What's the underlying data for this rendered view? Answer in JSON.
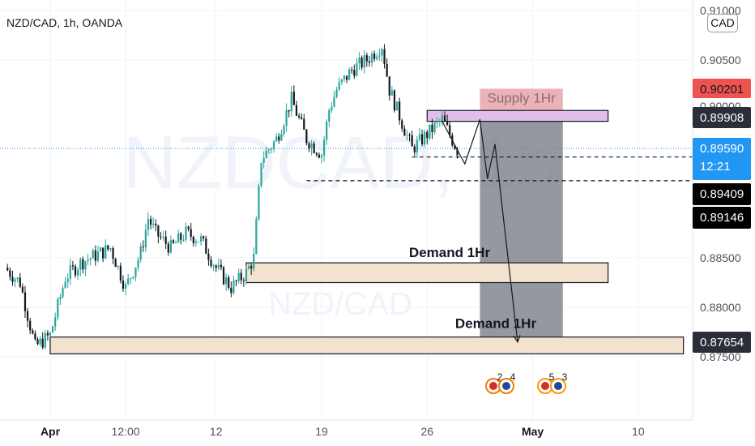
{
  "header": {
    "symbol_line": "NZD/CAD, 1h, OANDA",
    "currency_badge": "CAD"
  },
  "watermark": {
    "big": "NZDCAD, 1h",
    "small": "NZD/CAD"
  },
  "colors": {
    "up": "#26a69a",
    "down": "#131722",
    "last_price_line": "#2196f3",
    "last_price_tag": "#2196f3",
    "supply_fill": "#e7a6ac",
    "supply_tag": "#ef5350",
    "resistance_fill": "#e1bee7",
    "demand_fill": "#f3e2cd",
    "short_fill": "#787b86",
    "dark_tag": "#2a2e39",
    "black_tag": "#000000",
    "text": "#131722",
    "axis_text": "#50535e"
  },
  "chart_data": {
    "type": "candlestick",
    "symbol": "NZD/CAD",
    "timeframe": "1h",
    "exchange": "OANDA",
    "quote_currency": "CAD",
    "ylim": [
      0.8725,
      0.9105
    ],
    "y_ticks": [
      "0.91000",
      "0.90500",
      "0.88500",
      "0.88000",
      "0.87500"
    ],
    "x_ticks": [
      "Apr",
      "12:00",
      "12",
      "19",
      "26",
      "May",
      "10"
    ],
    "x_tick_dates": [
      "2021-04-01",
      "2021-04-06",
      "2021-04-12",
      "2021-04-19",
      "2021-04-26",
      "2021-05-03",
      "2021-05-10"
    ],
    "price_path": [
      {
        "t": "2021-03-29",
        "p": 0.884
      },
      {
        "t": "2021-03-30",
        "p": 0.8825
      },
      {
        "t": "2021-03-31",
        "p": 0.876
      },
      {
        "t": "2021-04-01",
        "p": 0.8772
      },
      {
        "t": "2021-04-02",
        "p": 0.883
      },
      {
        "t": "2021-04-03",
        "p": 0.8845
      },
      {
        "t": "2021-04-05",
        "p": 0.886
      },
      {
        "t": "2021-04-06",
        "p": 0.882
      },
      {
        "t": "2021-04-07",
        "p": 0.8855
      },
      {
        "t": "2021-04-07T12:00",
        "p": 0.889
      },
      {
        "t": "2021-04-08",
        "p": 0.8875
      },
      {
        "t": "2021-04-09",
        "p": 0.886
      },
      {
        "t": "2021-04-10",
        "p": 0.8875
      },
      {
        "t": "2021-04-11",
        "p": 0.8868
      },
      {
        "t": "2021-04-12",
        "p": 0.884
      },
      {
        "t": "2021-04-13",
        "p": 0.882
      },
      {
        "t": "2021-04-14",
        "p": 0.8835
      },
      {
        "t": "2021-04-14T12:00",
        "p": 0.885
      },
      {
        "t": "2021-04-15",
        "p": 0.895
      },
      {
        "t": "2021-04-16",
        "p": 0.897
      },
      {
        "t": "2021-04-17",
        "p": 0.901
      },
      {
        "t": "2021-04-18",
        "p": 0.897
      },
      {
        "t": "2021-04-19",
        "p": 0.8955
      },
      {
        "t": "2021-04-19T12:00",
        "p": 0.9
      },
      {
        "t": "2021-04-20",
        "p": 0.902
      },
      {
        "t": "2021-04-21",
        "p": 0.904
      },
      {
        "t": "2021-04-22",
        "p": 0.905
      },
      {
        "t": "2021-04-23",
        "p": 0.9065
      },
      {
        "t": "2021-04-23T12:00",
        "p": 0.902
      },
      {
        "t": "2021-04-24",
        "p": 0.9
      },
      {
        "t": "2021-04-25",
        "p": 0.896
      },
      {
        "t": "2021-04-26",
        "p": 0.8975
      },
      {
        "t": "2021-04-27",
        "p": 0.899
      },
      {
        "t": "2021-04-28",
        "p": 0.8959
      }
    ],
    "current_price": {
      "value": "0.89590",
      "countdown": "12:21"
    },
    "price_tags": [
      {
        "value": "0.90201",
        "role": "supply"
      },
      {
        "value": "0.89908",
        "role": "resistance"
      },
      {
        "value": "0.89409",
        "role": "level"
      },
      {
        "value": "0.89146",
        "role": "level"
      },
      {
        "value": "0.87654",
        "role": "demand"
      }
    ],
    "zones": [
      {
        "name": "Supply 1Hr",
        "label": "Supply 1Hr",
        "from": "2021-04-29T12:00",
        "to": "2021-05-05",
        "bottom": 0.899,
        "top": 0.9021
      },
      {
        "name": "resistance",
        "label": "",
        "from": "2021-04-26",
        "to": "2021-05-08",
        "bottom": 0.8988,
        "top": 0.8999
      },
      {
        "name": "Demand 1Hr",
        "label": "Demand 1Hr",
        "from": "2021-04-14",
        "to": "2021-05-08",
        "bottom": 0.8825,
        "top": 0.8845
      },
      {
        "name": "Demand 1Hr",
        "label": "Demand 1Hr",
        "from": "2021-04-01",
        "to": "2021-05-13",
        "bottom": 0.8753,
        "top": 0.877
      }
    ],
    "short_position": {
      "from": "2021-04-29T12:00",
      "to": "2021-05-05",
      "entry": 0.899,
      "target": 0.8765
    },
    "dashed_levels": [
      {
        "value": 0.8952,
        "from": "2021-04-25"
      },
      {
        "value": 0.8928,
        "from": "2021-04-18"
      }
    ],
    "projection_path": [
      {
        "t": "2021-04-27",
        "p": 0.8988
      },
      {
        "t": "2021-04-28T12:00",
        "p": 0.8945
      },
      {
        "t": "2021-04-29T12:00",
        "p": 0.899
      },
      {
        "t": "2021-04-30",
        "p": 0.893
      },
      {
        "t": "2021-04-30T12:00",
        "p": 0.8965
      },
      {
        "t": "2021-05-02",
        "p": 0.8765
      }
    ],
    "event_markers": [
      "2",
      "4",
      "5",
      "3"
    ]
  }
}
